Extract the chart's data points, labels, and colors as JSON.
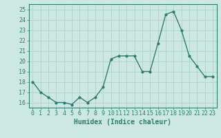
{
  "x": [
    0,
    1,
    2,
    3,
    4,
    5,
    6,
    7,
    8,
    9,
    10,
    11,
    12,
    13,
    14,
    15,
    16,
    17,
    18,
    19,
    20,
    21,
    22,
    23
  ],
  "y": [
    18,
    17,
    16.5,
    16,
    16,
    15.8,
    16.5,
    16,
    16.5,
    17.5,
    20.2,
    20.5,
    20.5,
    20.5,
    19,
    19,
    21.7,
    24.5,
    24.8,
    23,
    20.5,
    19.5,
    18.5,
    18.5
  ],
  "line_color": "#2e7d6e",
  "marker": "o",
  "marker_size": 2,
  "linewidth": 1.0,
  "xlabel": "Humidex (Indice chaleur)",
  "xlim": [
    -0.5,
    23.5
  ],
  "ylim": [
    15.5,
    25.5
  ],
  "yticks": [
    16,
    17,
    18,
    19,
    20,
    21,
    22,
    23,
    24,
    25
  ],
  "xticks": [
    0,
    1,
    2,
    3,
    4,
    5,
    6,
    7,
    8,
    9,
    10,
    11,
    12,
    13,
    14,
    15,
    16,
    17,
    18,
    19,
    20,
    21,
    22,
    23
  ],
  "bg_color": "#cde8e2",
  "grid_color": "#b0d8d0",
  "tick_color": "#2e7d6e",
  "label_color": "#2e7d6e",
  "xlabel_fontsize": 7,
  "tick_fontsize": 6
}
